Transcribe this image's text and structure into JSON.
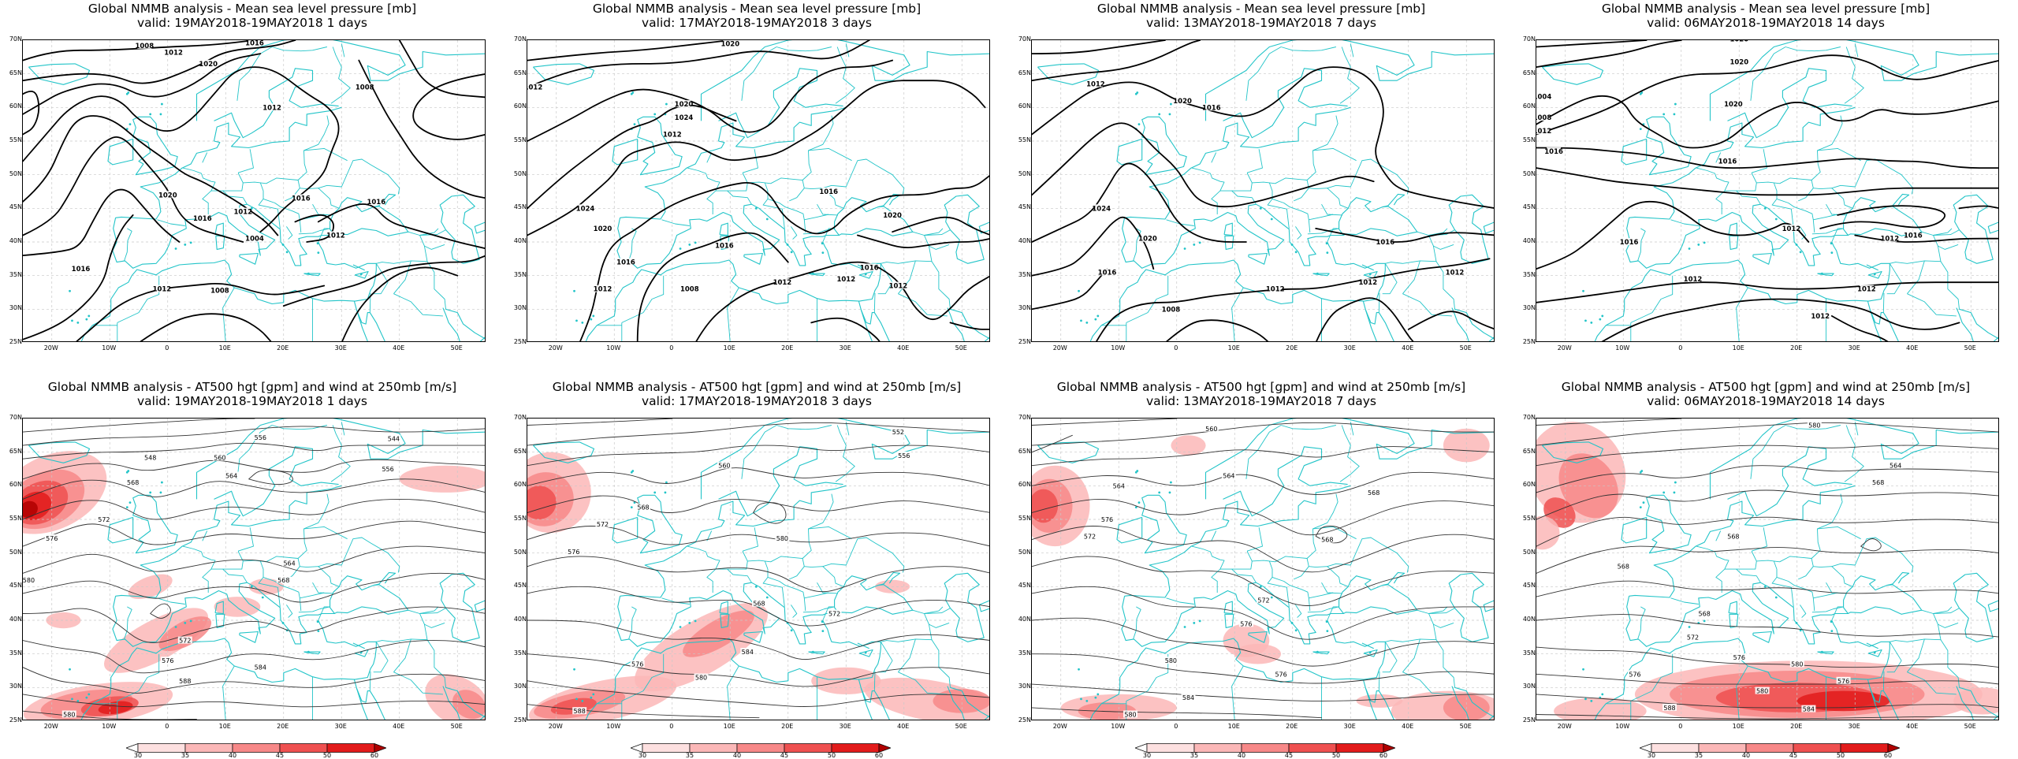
{
  "panels": [
    {
      "id": "mslp-1",
      "row": 0,
      "col": 0,
      "kind": "mslp",
      "title1": "Global NMMB analysis - Mean sea level pressure [mb]",
      "title2": "valid: 19MAY2018-19MAY2018   1 days",
      "labels": [
        "1008",
        "1012",
        "1020",
        "1016",
        "1020",
        "1016",
        "1012",
        "1004",
        "1008",
        "1012",
        "1016",
        "1016",
        "1012",
        "1016",
        "1012",
        "1008"
      ]
    },
    {
      "id": "mslp-3",
      "row": 0,
      "col": 1,
      "kind": "mslp",
      "title1": "Global NMMB analysis - Mean sea level pressure [mb]",
      "title2": "valid: 17MAY2018-19MAY2018   3 days",
      "labels": [
        "1012",
        "1020",
        "1020",
        "1024",
        "1024",
        "1020",
        "1012",
        "1016",
        "1016",
        "1012",
        "1016",
        "1016",
        "1020",
        "1012",
        "1008",
        "1012",
        "1012"
      ]
    },
    {
      "id": "mslp-7",
      "row": 0,
      "col": 2,
      "kind": "mslp",
      "title1": "Global NMMB analysis - Mean sea level pressure [mb]",
      "title2": "valid: 13MAY2018-19MAY2018   7 days",
      "labels": [
        "1012",
        "1020",
        "1016",
        "1024",
        "1020",
        "1016",
        "1016",
        "1012",
        "1008",
        "1012",
        "1012"
      ]
    },
    {
      "id": "mslp-14",
      "row": 0,
      "col": 3,
      "kind": "mslp",
      "title1": "Global NMMB analysis - Mean sea level pressure [mb]",
      "title2": "valid: 06MAY2018-19MAY2018   14 days",
      "labels": [
        "1020",
        "1020",
        "1004",
        "1008",
        "1012",
        "1016",
        "1020",
        "1016",
        "1016",
        "1012",
        "1012",
        "1012",
        "1012",
        "1016",
        "1012"
      ]
    },
    {
      "id": "z500-1",
      "row": 1,
      "col": 0,
      "kind": "z500",
      "title1": "Global NMMB analysis - AT500 hgt [gpm] and wind at 250mb [m/s]",
      "title2": "valid: 19MAY2018-19MAY2018   1 days",
      "labels": [
        "556",
        "544",
        "548",
        "560",
        "556",
        "564",
        "568",
        "572",
        "576",
        "580",
        "564",
        "568",
        "572",
        "576",
        "584",
        "588",
        "580"
      ]
    },
    {
      "id": "z500-3",
      "row": 1,
      "col": 1,
      "kind": "z500",
      "title1": "Global NMMB analysis - AT500 hgt [gpm] and wind at 250mb [m/s]",
      "title2": "valid: 17MAY2018-19MAY2018   3 days",
      "labels": [
        "552",
        "556",
        "560",
        "568",
        "572",
        "576",
        "580",
        "568",
        "572",
        "576",
        "580",
        "584",
        "588"
      ]
    },
    {
      "id": "z500-7",
      "row": 1,
      "col": 2,
      "kind": "z500",
      "title1": "Global NMMB analysis - AT500 hgt [gpm] and wind at 250mb [m/s]",
      "title2": "valid: 13MAY2018-19MAY2018   7 days",
      "labels": [
        "560",
        "564",
        "568",
        "576",
        "572",
        "564",
        "568",
        "572",
        "576",
        "580",
        "576",
        "584",
        "580"
      ]
    },
    {
      "id": "z500-14",
      "row": 1,
      "col": 3,
      "kind": "z500",
      "title1": "Global NMMB analysis - AT500 hgt [gpm] and wind at 250mb [m/s]",
      "title2": "valid: 06MAY2018-19MAY2018   14 days",
      "labels": [
        "580",
        "564",
        "568",
        "568",
        "568",
        "568",
        "576",
        "580",
        "576",
        "580",
        "584",
        "588",
        "572",
        "576"
      ]
    }
  ],
  "lat_labels": [
    "70N",
    "65N",
    "60N",
    "55N",
    "50N",
    "45N",
    "40N",
    "35N",
    "30N",
    "25N"
  ],
  "lon_labels": [
    "20W",
    "10W",
    "0",
    "10E",
    "20E",
    "30E",
    "40E",
    "50E"
  ],
  "colorbar": {
    "ticks": [
      "30",
      "35",
      "40",
      "45",
      "50",
      "60"
    ],
    "colors": [
      "#ffffff",
      "#fde0e0",
      "#fbb7b7",
      "#f78888",
      "#ef5050",
      "#e21b1b",
      "#b00000"
    ]
  },
  "colors": {
    "coast": "#22c4c8",
    "contour": "#000000",
    "contour_thin": "#333333",
    "grid": "#c8c8c8",
    "jet": "#e8282a"
  }
}
